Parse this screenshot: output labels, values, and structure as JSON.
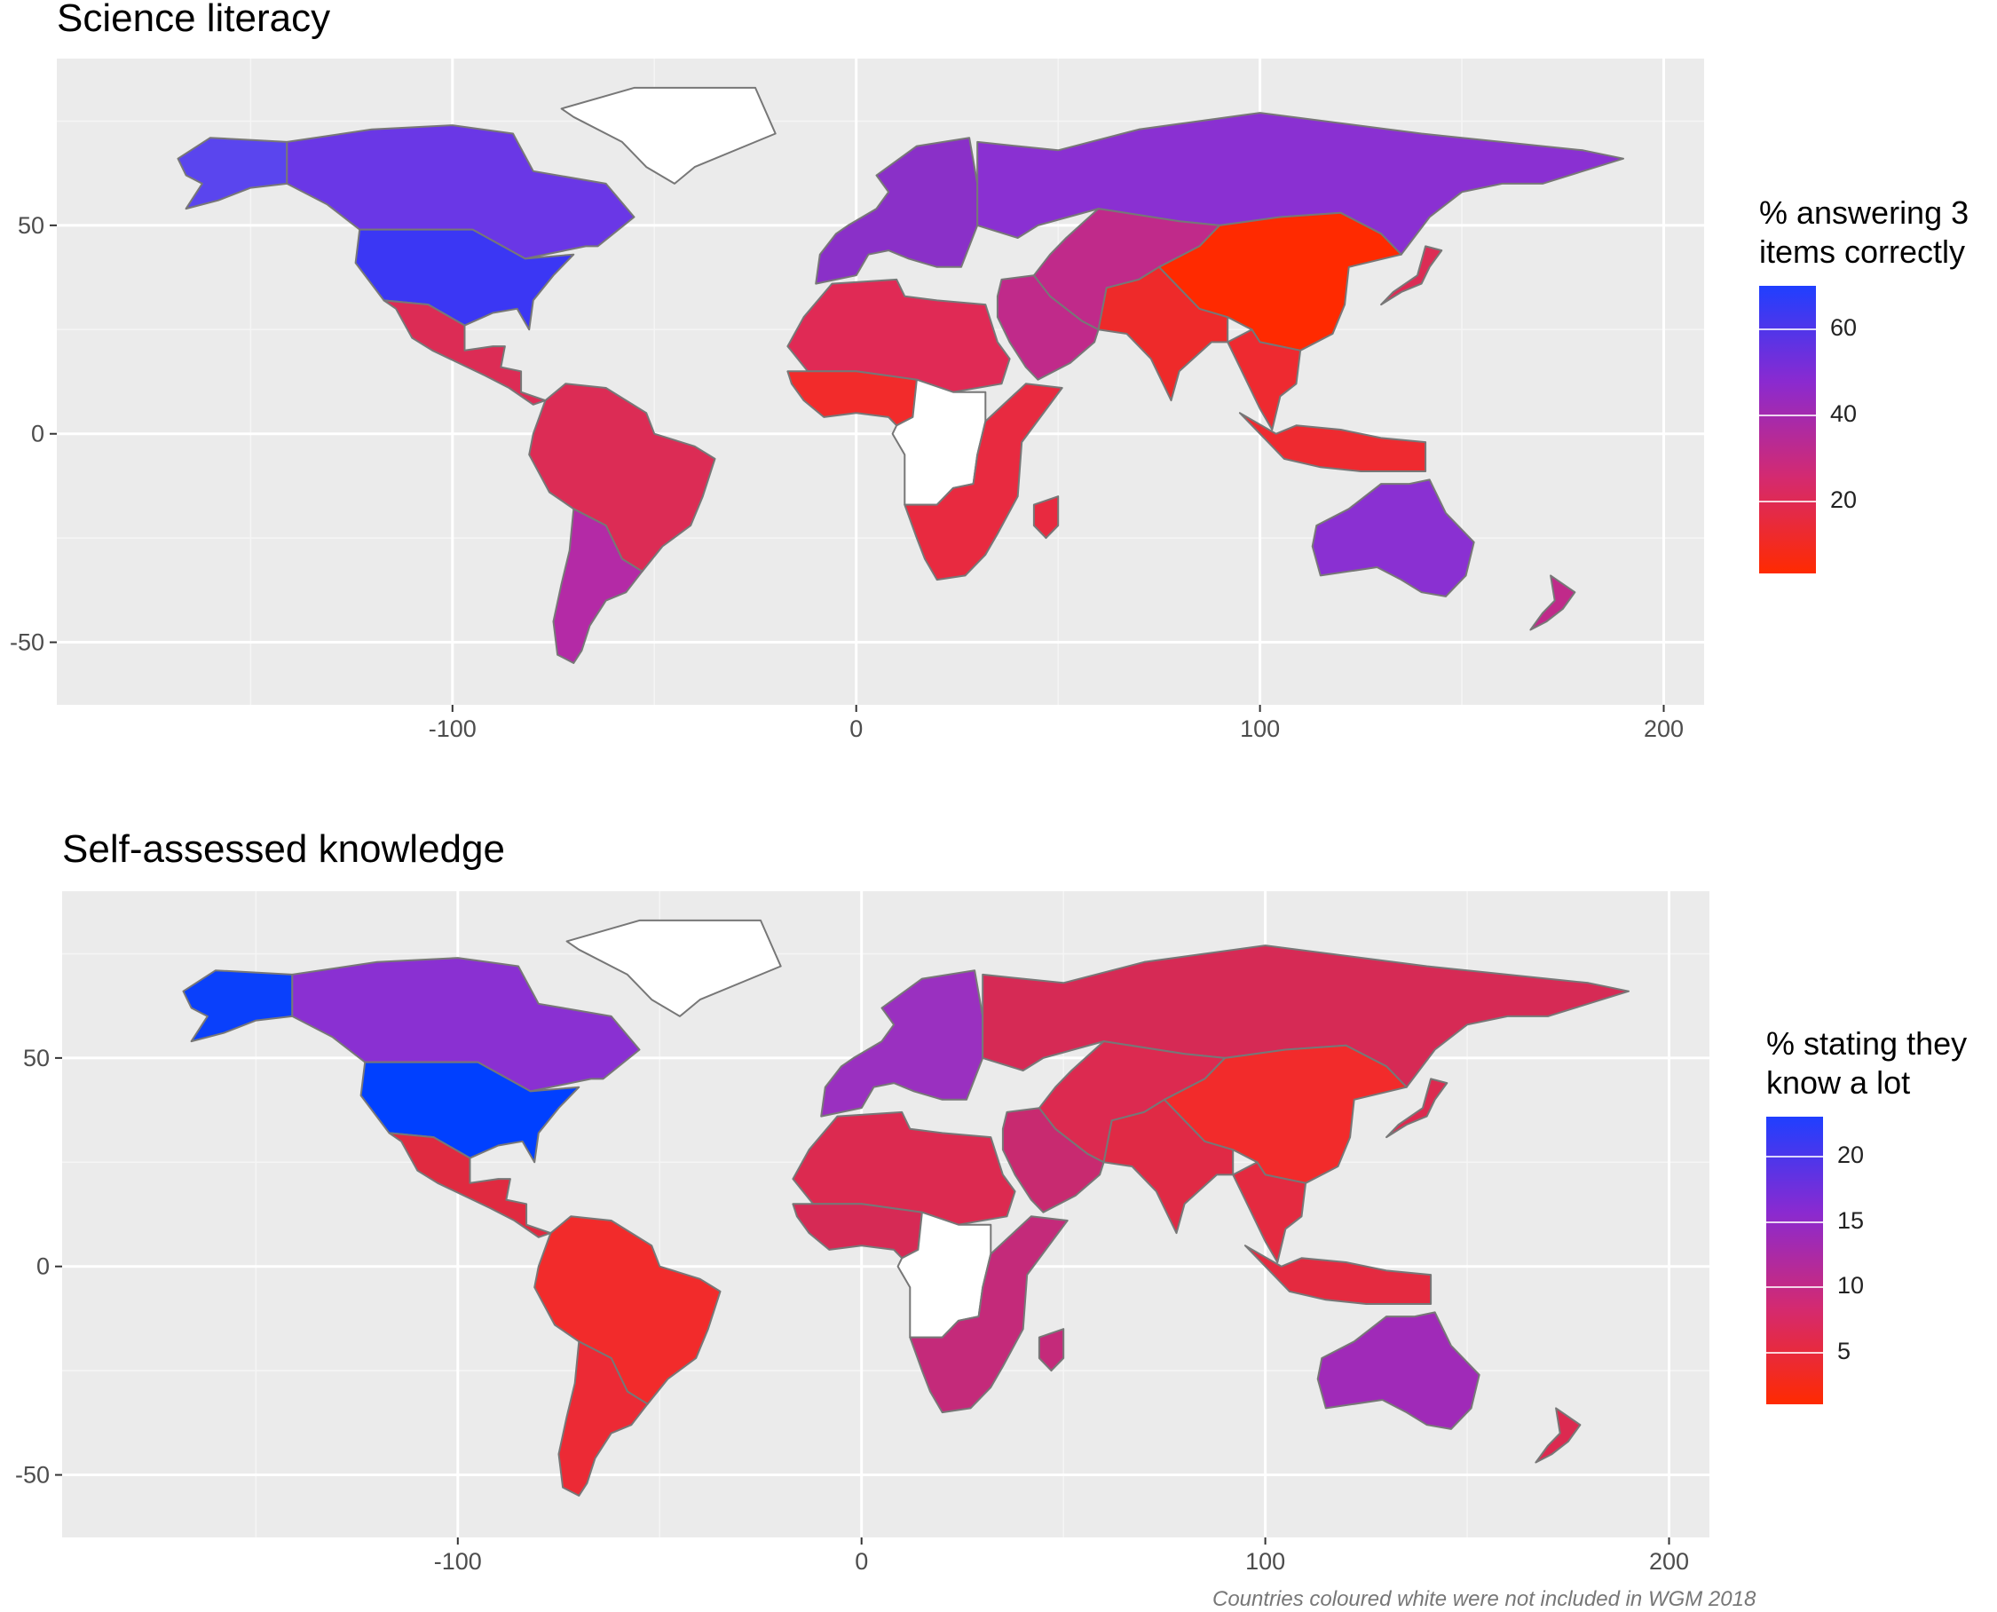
{
  "chart_data": [
    {
      "type": "choropleth",
      "title": "Science literacy",
      "legend_title_lines": [
        "% answering 3",
        "items correctly"
      ],
      "legend_breaks": [
        20,
        40,
        60
      ],
      "color_low": "#ff2a00",
      "color_high": "#1f3fff",
      "x_ticks": [
        -100,
        0,
        100,
        200
      ],
      "y_ticks": [
        50,
        0,
        -50
      ],
      "xlim": [
        -198,
        210
      ],
      "ylim": [
        -65,
        90
      ],
      "regions": [
        {
          "name": "Canada",
          "value": 58,
          "color": "#6a37e6"
        },
        {
          "name": "United States",
          "value": 66,
          "color": "#3b37f4"
        },
        {
          "name": "Alaska",
          "value": 66,
          "color": "#5a45ee"
        },
        {
          "name": "Greenland",
          "value": null,
          "color": "#ffffff"
        },
        {
          "name": "Mexico & Central America",
          "value": 22,
          "color": "#dc2c55"
        },
        {
          "name": "South America North",
          "value": 25,
          "color": "#dc2c55"
        },
        {
          "name": "Argentina / Chile",
          "value": 40,
          "color": "#b42aa6"
        },
        {
          "name": "Europe",
          "value": 48,
          "color": "#8a30c8"
        },
        {
          "name": "Russia",
          "value": 50,
          "color": "#8a30d2"
        },
        {
          "name": "North Africa",
          "value": 22,
          "color": "#e02a55"
        },
        {
          "name": "West Africa",
          "value": 12,
          "color": "#f22b2b"
        },
        {
          "name": "Central Africa (not in WGM)",
          "value": null,
          "color": "#ffffff"
        },
        {
          "name": "Southern Africa",
          "value": 12,
          "color": "#e82a40"
        },
        {
          "name": "Middle East",
          "value": 30,
          "color": "#c02a8a"
        },
        {
          "name": "Central Asia",
          "value": 35,
          "color": "#c02a8a"
        },
        {
          "name": "South Asia",
          "value": 10,
          "color": "#ee2a2a"
        },
        {
          "name": "China",
          "value": 5,
          "color": "#ff2a00"
        },
        {
          "name": "Japan",
          "value": 25,
          "color": "#dc2c55"
        },
        {
          "name": "Southeast Asia",
          "value": 12,
          "color": "#ee2a30"
        },
        {
          "name": "Australia",
          "value": 52,
          "color": "#8a30d2"
        },
        {
          "name": "New Zealand",
          "value": 35,
          "color": "#c02a8a"
        }
      ]
    },
    {
      "type": "choropleth",
      "title": "Self-assessed knowledge",
      "legend_title_lines": [
        "% stating they",
        "know a lot"
      ],
      "legend_breaks": [
        5,
        10,
        15,
        20
      ],
      "color_low": "#ff2a00",
      "color_high": "#1f3fff",
      "x_ticks": [
        -100,
        0,
        100,
        200
      ],
      "y_ticks": [
        50,
        0,
        -50
      ],
      "xlim": [
        -198,
        210
      ],
      "ylim": [
        -65,
        90
      ],
      "regions": [
        {
          "name": "Canada",
          "value": 17,
          "color": "#8a30d2"
        },
        {
          "name": "United States",
          "value": 23,
          "color": "#0040ff"
        },
        {
          "name": "Alaska",
          "value": 23,
          "color": "#0a40fb"
        },
        {
          "name": "Greenland",
          "value": null,
          "color": "#ffffff"
        },
        {
          "name": "Mexico & Central America",
          "value": 7,
          "color": "#e02a40"
        },
        {
          "name": "South America North",
          "value": 3,
          "color": "#f22b2b"
        },
        {
          "name": "Argentina / Chile",
          "value": 5,
          "color": "#ec2a35"
        },
        {
          "name": "Europe",
          "value": 14,
          "color": "#9a30c0"
        },
        {
          "name": "Russia",
          "value": 9,
          "color": "#d62a55"
        },
        {
          "name": "North Africa",
          "value": 8,
          "color": "#dc2a50"
        },
        {
          "name": "West Africa",
          "value": 9,
          "color": "#d62a55"
        },
        {
          "name": "Central Africa (not in WGM)",
          "value": null,
          "color": "#ffffff"
        },
        {
          "name": "Southern Africa",
          "value": 11,
          "color": "#c42a7a"
        },
        {
          "name": "Middle East",
          "value": 10,
          "color": "#c82a70"
        },
        {
          "name": "Central Asia",
          "value": 8,
          "color": "#dc2a50"
        },
        {
          "name": "South Asia",
          "value": 7,
          "color": "#e02a45"
        },
        {
          "name": "China",
          "value": 4,
          "color": "#f22b2b"
        },
        {
          "name": "Japan",
          "value": 8,
          "color": "#dc2a50"
        },
        {
          "name": "Southeast Asia",
          "value": 6,
          "color": "#e42a40"
        },
        {
          "name": "Australia",
          "value": 15,
          "color": "#a02ab8"
        },
        {
          "name": "New Zealand",
          "value": 8,
          "color": "#dc2a50"
        }
      ]
    }
  ],
  "caption": "Countries coloured white were not included in WGM 2018"
}
